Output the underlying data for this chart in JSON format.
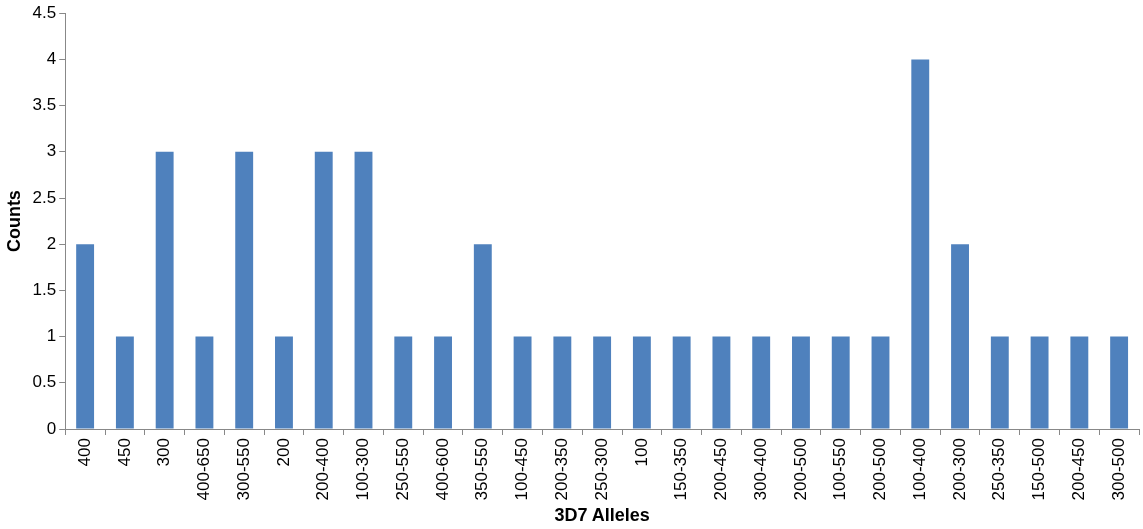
{
  "chart_data": {
    "type": "bar",
    "xlabel": "3D7 Alleles",
    "ylabel": "Counts",
    "categories": [
      "400",
      "450",
      "300",
      "400-650",
      "300-550",
      "200",
      "200-400",
      "100-300",
      "250-550",
      "400-600",
      "350-550",
      "100-450",
      "200-350",
      "250-300",
      "100",
      "150-350",
      "200-450",
      "300-400",
      "200-500",
      "100-550",
      "200-500",
      "100-400",
      "200-300",
      "250-350",
      "150-500",
      "200-450",
      "300-500"
    ],
    "values": [
      2,
      1,
      3,
      1,
      3,
      1,
      3,
      3,
      1,
      1,
      2,
      1,
      1,
      1,
      1,
      1,
      1,
      1,
      1,
      1,
      1,
      4,
      2,
      1,
      1,
      1,
      1
    ],
    "color": "#4f81bd",
    "ylim": [
      0,
      4.5
    ],
    "yticks": [
      0,
      0.5,
      1,
      1.5,
      2,
      2.5,
      3,
      3.5,
      4,
      4.5
    ],
    "grid": false,
    "legend": false
  }
}
